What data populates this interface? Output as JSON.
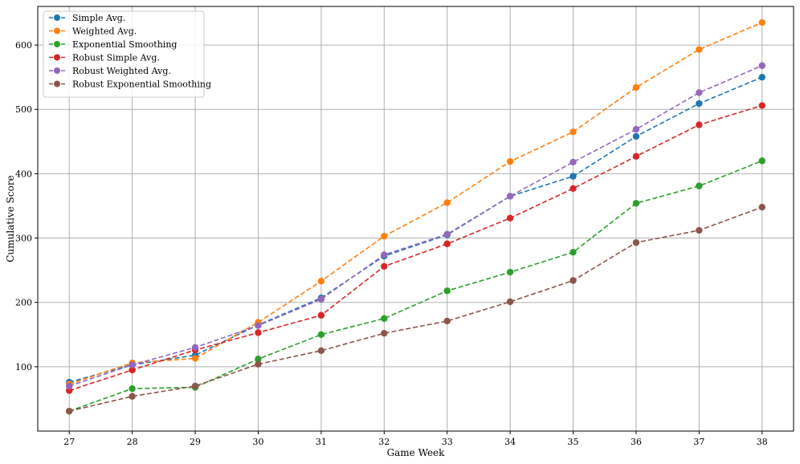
{
  "chart_data": {
    "type": "line",
    "title": "",
    "xlabel": "Game Week",
    "ylabel": "Cumulative Score",
    "x": [
      27,
      28,
      29,
      30,
      31,
      32,
      33,
      34,
      35,
      36,
      37,
      38
    ],
    "xlim": [
      26.5,
      38.5
    ],
    "ylim": [
      0,
      660
    ],
    "yticks": [
      100,
      200,
      300,
      400,
      500,
      600
    ],
    "grid": true,
    "legend_position": "top-left",
    "line_style": "dashed",
    "marker": "circle",
    "series": [
      {
        "name": "Simple Avg.",
        "color": "#1f77b4",
        "values": [
          76,
          103,
          118,
          165,
          207,
          272,
          305,
          365,
          396,
          458,
          509,
          550
        ]
      },
      {
        "name": "Weighted Avg.",
        "color": "#ff7f0e",
        "values": [
          73,
          106,
          113,
          169,
          233,
          303,
          355,
          419,
          465,
          534,
          593,
          635
        ]
      },
      {
        "name": "Exponential Smoothing",
        "color": "#2ca02c",
        "values": [
          31,
          66,
          68,
          112,
          150,
          175,
          218,
          247,
          278,
          354,
          381,
          420
        ]
      },
      {
        "name": "Robust Simple Avg.",
        "color": "#d62728",
        "values": [
          63,
          95,
          126,
          153,
          180,
          256,
          291,
          331,
          377,
          427,
          476,
          506
        ]
      },
      {
        "name": "Robust Weighted Avg.",
        "color": "#9467bd",
        "values": [
          70,
          103,
          130,
          164,
          205,
          274,
          306,
          365,
          418,
          469,
          526,
          568
        ]
      },
      {
        "name": "Robust Exponential Smoothing",
        "color": "#8c564b",
        "values": [
          31,
          54,
          70,
          104,
          125,
          152,
          171,
          201,
          234,
          293,
          312,
          348
        ]
      }
    ]
  }
}
